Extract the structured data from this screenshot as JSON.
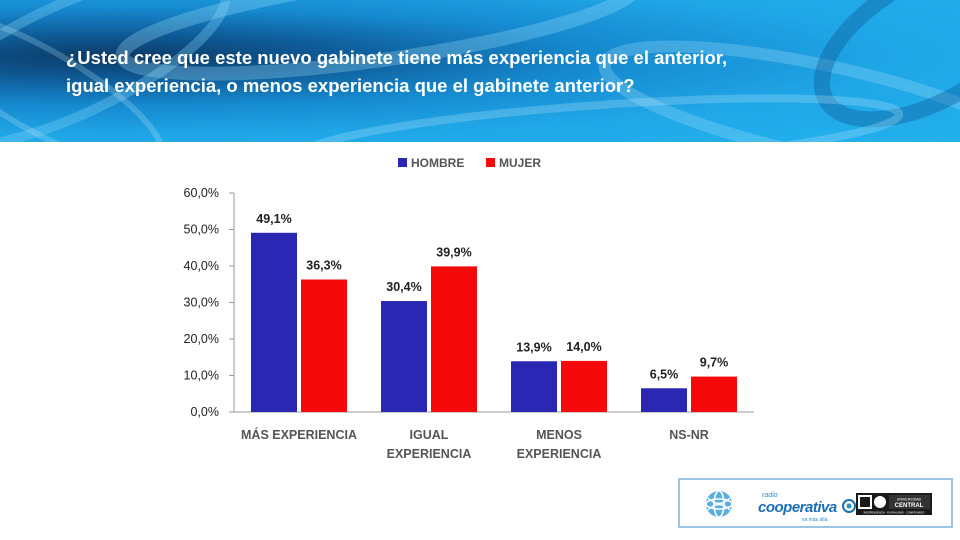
{
  "title": {
    "line1": "¿Usted cree que este nuevo gabinete tiene más experiencia que el anterior,",
    "line2": "igual experiencia, o menos experiencia que el gabinete anterior?"
  },
  "chart_data": {
    "type": "bar",
    "categories": [
      [
        "MÁS  EXPERIENCIA"
      ],
      [
        "IGUAL",
        "EXPERIENCIA"
      ],
      [
        "MENOS",
        "EXPERIENCIA"
      ],
      [
        "NS-NR"
      ]
    ],
    "series": [
      {
        "name": "HOMBRE",
        "color": "#2a27b2",
        "values": [
          49.1,
          30.4,
          13.9,
          6.5
        ],
        "labels": [
          "49,1%",
          "30,4%",
          "13,9%",
          "6,5%"
        ]
      },
      {
        "name": "MUJER",
        "color": "#f5090b",
        "values": [
          36.3,
          39.9,
          14.0,
          9.7
        ],
        "labels": [
          "36,3%",
          "39,9%",
          "14,0%",
          "9,7%"
        ]
      }
    ],
    "ylim": [
      0,
      60
    ],
    "yticks": [
      "0,0%",
      "10,0%",
      "20,0%",
      "30,0%",
      "40,0%",
      "50,0%",
      "60,0%"
    ],
    "legend_position": "top",
    "grid": false
  },
  "logos": {
    "cooperativa_small": "radio",
    "cooperativa_big": "cooperativa",
    "cooperativa_tag": "va más allá",
    "ucen_name_1": "UNIVERSIDAD",
    "ucen_name_2": "CENTRAL",
    "ucen_tag": "INDEPENDENCIA · PLURALISMO · COMPROMISO"
  }
}
